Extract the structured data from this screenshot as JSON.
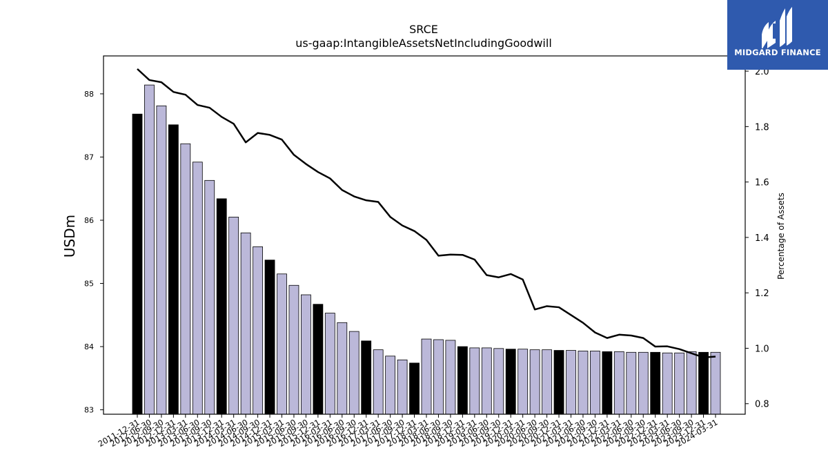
{
  "title": "SRCE",
  "subtitle": "us-gaap:IntangibleAssetsNetIncludingGoodwill",
  "brand": {
    "name": "MIDGARD FINANCE",
    "icon": "midgard-logo-icon",
    "color": "#2f5aae"
  },
  "colors": {
    "bar_annual": "#000000",
    "bar_quarter": "#bbb8d9",
    "line": "#000000"
  },
  "chart_data": {
    "type": "bar",
    "title": "SRCE",
    "subtitle": "us-gaap:IntangibleAssetsNetIncludingGoodwill",
    "categories": [
      "2011-12-31",
      "2012-06-30",
      "2012-09-30",
      "2012-12-31",
      "2013-03-31",
      "2013-06-30",
      "2013-09-30",
      "2013-12-31",
      "2014-03-31",
      "2014-06-30",
      "2014-09-30",
      "2014-12-31",
      "2015-03-31",
      "2015-06-30",
      "2015-09-30",
      "2015-12-31",
      "2016-03-31",
      "2016-06-30",
      "2016-09-30",
      "2016-12-31",
      "2017-03-31",
      "2017-06-30",
      "2017-09-30",
      "2017-12-31",
      "2018-03-31",
      "2018-06-30",
      "2018-09-30",
      "2018-12-31",
      "2019-03-31",
      "2019-06-30",
      "2019-09-30",
      "2019-12-31",
      "2020-03-31",
      "2020-06-30",
      "2020-09-30",
      "2020-12-31",
      "2021-03-31",
      "2021-06-30",
      "2021-09-30",
      "2021-12-31",
      "2022-03-31",
      "2022-06-30",
      "2022-09-30",
      "2022-12-31",
      "2023-03-31",
      "2023-06-30",
      "2023-09-30",
      "2023-12-31",
      "2024-03-31"
    ],
    "ylabel": "USDm",
    "ylim": [
      82.93,
      88.6
    ],
    "yticks": [
      83,
      84,
      85,
      86,
      87,
      88
    ],
    "y2label": "Percentage of Assets",
    "y2lim": [
      0.762,
      2.055
    ],
    "y2ticks": [
      "0.8",
      "1.0",
      "1.2",
      "1.4",
      "1.6",
      "1.8",
      "2.0"
    ],
    "annual_index": [
      0,
      3,
      7,
      11,
      15,
      19,
      23,
      27,
      31,
      35,
      39,
      43,
      47
    ],
    "series": [
      {
        "type": "bar",
        "values": [
          87.68,
          88.14,
          87.81,
          87.51,
          87.21,
          86.92,
          86.63,
          86.34,
          86.05,
          85.8,
          85.58,
          85.37,
          85.15,
          84.97,
          84.82,
          84.67,
          84.53,
          84.38,
          84.24,
          84.09,
          83.95,
          83.85,
          83.79,
          83.74,
          84.12,
          84.11,
          84.1,
          84.0,
          83.98,
          83.98,
          83.97,
          83.96,
          83.96,
          83.95,
          83.95,
          83.94,
          83.94,
          83.93,
          83.93,
          83.92,
          83.92,
          83.91,
          83.91,
          83.91,
          83.9,
          83.9,
          83.92,
          83.91,
          83.91
        ]
      },
      {
        "type": "line",
        "axis": "right",
        "values": [
          2.008,
          1.968,
          1.96,
          1.925,
          1.915,
          1.878,
          1.868,
          1.835,
          1.81,
          1.743,
          1.777,
          1.77,
          1.753,
          1.698,
          1.665,
          1.636,
          1.613,
          1.571,
          1.548,
          1.534,
          1.528,
          1.474,
          1.443,
          1.423,
          1.391,
          1.334,
          1.338,
          1.337,
          1.32,
          1.264,
          1.256,
          1.268,
          1.248,
          1.14,
          1.152,
          1.148,
          1.12,
          1.092,
          1.057,
          1.037,
          1.049,
          1.046,
          1.037,
          1.006,
          1.007,
          0.997,
          0.982,
          0.967,
          0.97
        ]
      }
    ]
  }
}
